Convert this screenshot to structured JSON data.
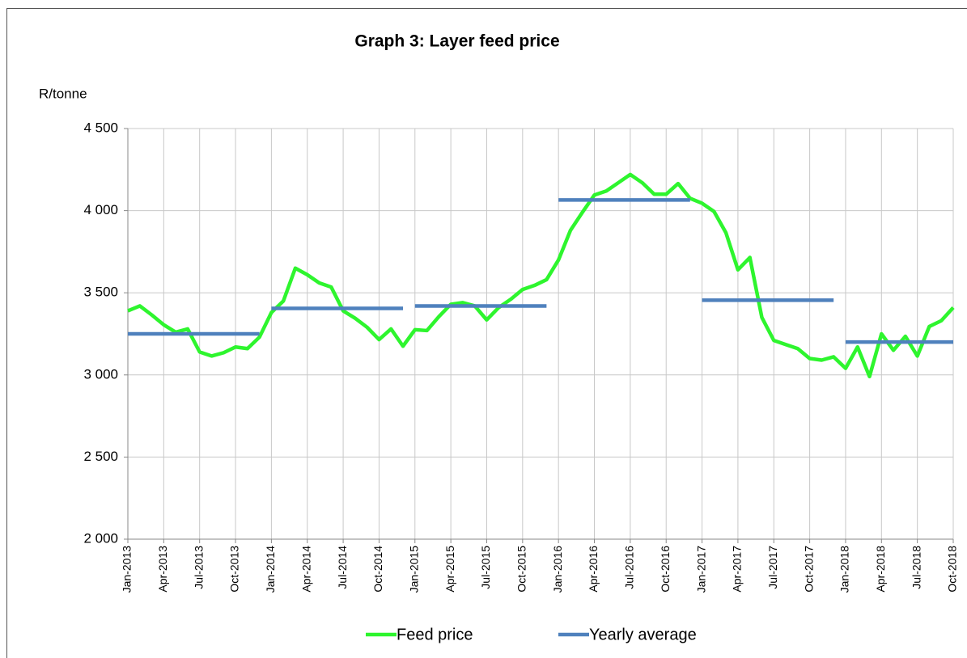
{
  "chart_data": {
    "type": "line",
    "title": "Graph 3: Layer feed price",
    "y_label": "R/tonne",
    "categories": [
      "Jan-2013",
      null,
      null,
      "Apr-2013",
      null,
      null,
      "Jul-2013",
      null,
      null,
      "Oct-2013",
      null,
      null,
      "Jan-2014",
      null,
      null,
      "Apr-2014",
      null,
      null,
      "Jul-2014",
      null,
      null,
      "Oct-2014",
      null,
      null,
      "Jan-2015",
      null,
      null,
      "Apr-2015",
      null,
      null,
      "Jul-2015",
      null,
      null,
      "Oct-2015",
      null,
      null,
      "Jan-2016",
      null,
      null,
      "Apr-2016",
      null,
      null,
      "Jul-2016",
      null,
      null,
      "Oct-2016",
      null,
      null,
      "Jan-2017",
      null,
      null,
      "Apr-2017",
      null,
      null,
      "Jul-2017",
      null,
      null,
      "Oct-2017",
      null,
      null,
      "Jan-2018",
      null,
      null,
      "Apr-2018",
      null,
      null,
      "Jul-2018",
      null,
      null,
      "Oct-2018"
    ],
    "series": [
      {
        "name": "Feed price",
        "color": "#2ef52e",
        "values": [
          3390,
          3420,
          3365,
          3305,
          3260,
          3280,
          3140,
          3115,
          3135,
          3170,
          3160,
          3230,
          3380,
          3450,
          3650,
          3610,
          3560,
          3535,
          3390,
          3345,
          3290,
          3215,
          3280,
          3175,
          3275,
          3270,
          3355,
          3430,
          3440,
          3420,
          3335,
          3410,
          3460,
          3520,
          3545,
          3580,
          3700,
          3880,
          3990,
          4095,
          4120,
          4170,
          4220,
          4170,
          4100,
          4100,
          4165,
          4075,
          4045,
          3995,
          3865,
          3640,
          3715,
          3350,
          3210,
          3185,
          3160,
          3100,
          3090,
          3110,
          3040,
          3170,
          2990,
          3250,
          3150,
          3235,
          3115,
          3295,
          3330,
          3410
        ]
      },
      {
        "name": "Yearly average",
        "color": "#4f81bd",
        "values": [
          3250,
          3250,
          3250,
          3250,
          3250,
          3250,
          3250,
          3250,
          3250,
          3250,
          3250,
          3250,
          3405,
          3405,
          3405,
          3405,
          3405,
          3405,
          3405,
          3405,
          3405,
          3405,
          3405,
          3405,
          3420,
          3420,
          3420,
          3420,
          3420,
          3420,
          3420,
          3420,
          3420,
          3420,
          3420,
          3420,
          4065,
          4065,
          4065,
          4065,
          4065,
          4065,
          4065,
          4065,
          4065,
          4065,
          4065,
          4065,
          3455,
          3455,
          3455,
          3455,
          3455,
          3455,
          3455,
          3455,
          3455,
          3455,
          3455,
          3455,
          3200,
          3200,
          3200,
          3200,
          3200,
          3200,
          3200,
          3200,
          3200,
          3200
        ]
      }
    ],
    "ylim": [
      2000,
      4500
    ],
    "yticks": [
      {
        "value": 2000,
        "label": "2 000"
      },
      {
        "value": 2500,
        "label": "2 500"
      },
      {
        "value": 3000,
        "label": "3 000"
      },
      {
        "value": 3500,
        "label": "3 500"
      },
      {
        "value": 4000,
        "label": "4 000"
      },
      {
        "value": 4500,
        "label": "4 500"
      }
    ],
    "grid": true,
    "legend": "bottom"
  }
}
